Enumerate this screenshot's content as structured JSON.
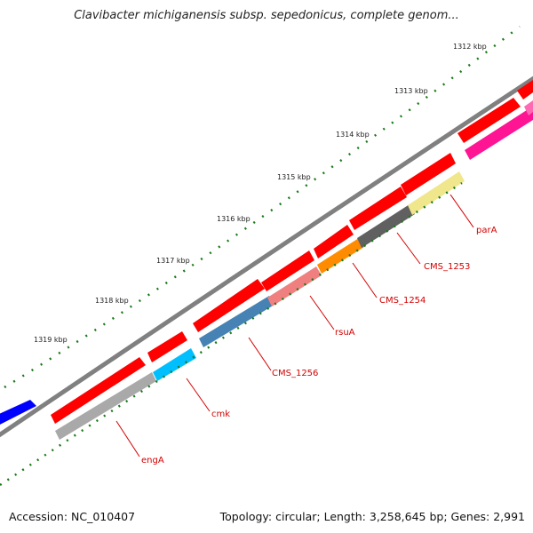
{
  "title": "Clavibacter michiganensis subsp. sepedonicus, complete genom...",
  "footer": {
    "accession": "Accession: NC_010407",
    "summary": "Topology: circular; Length: 3,258,645 bp; Genes: 2,991"
  },
  "ticks": [
    "1312 kbp",
    "1313 kbp",
    "1314 kbp",
    "1315 kbp",
    "1316 kbp",
    "1317 kbp",
    "1318 kbp",
    "1319 kbp"
  ],
  "genes": [
    {
      "name": "parA",
      "color": "#f0e68c"
    },
    {
      "name": "CMS_1253",
      "color": "#606060"
    },
    {
      "name": "CMS_1254",
      "color": "#ff8c00"
    },
    {
      "name": "rsuA",
      "color": "#f08080"
    },
    {
      "name": "CMS_1256",
      "color": "#4682b4"
    },
    {
      "name": "cmk",
      "color": "#00bfff"
    },
    {
      "name": "engA",
      "color": "#a9a9a9"
    }
  ],
  "colors": {
    "cds": "#ff0000",
    "backbone": "#808080",
    "tick": "#1a7a1a",
    "label": "#d40000",
    "blue_feature": "#0000ff",
    "pink_feature": "#ff1493"
  }
}
